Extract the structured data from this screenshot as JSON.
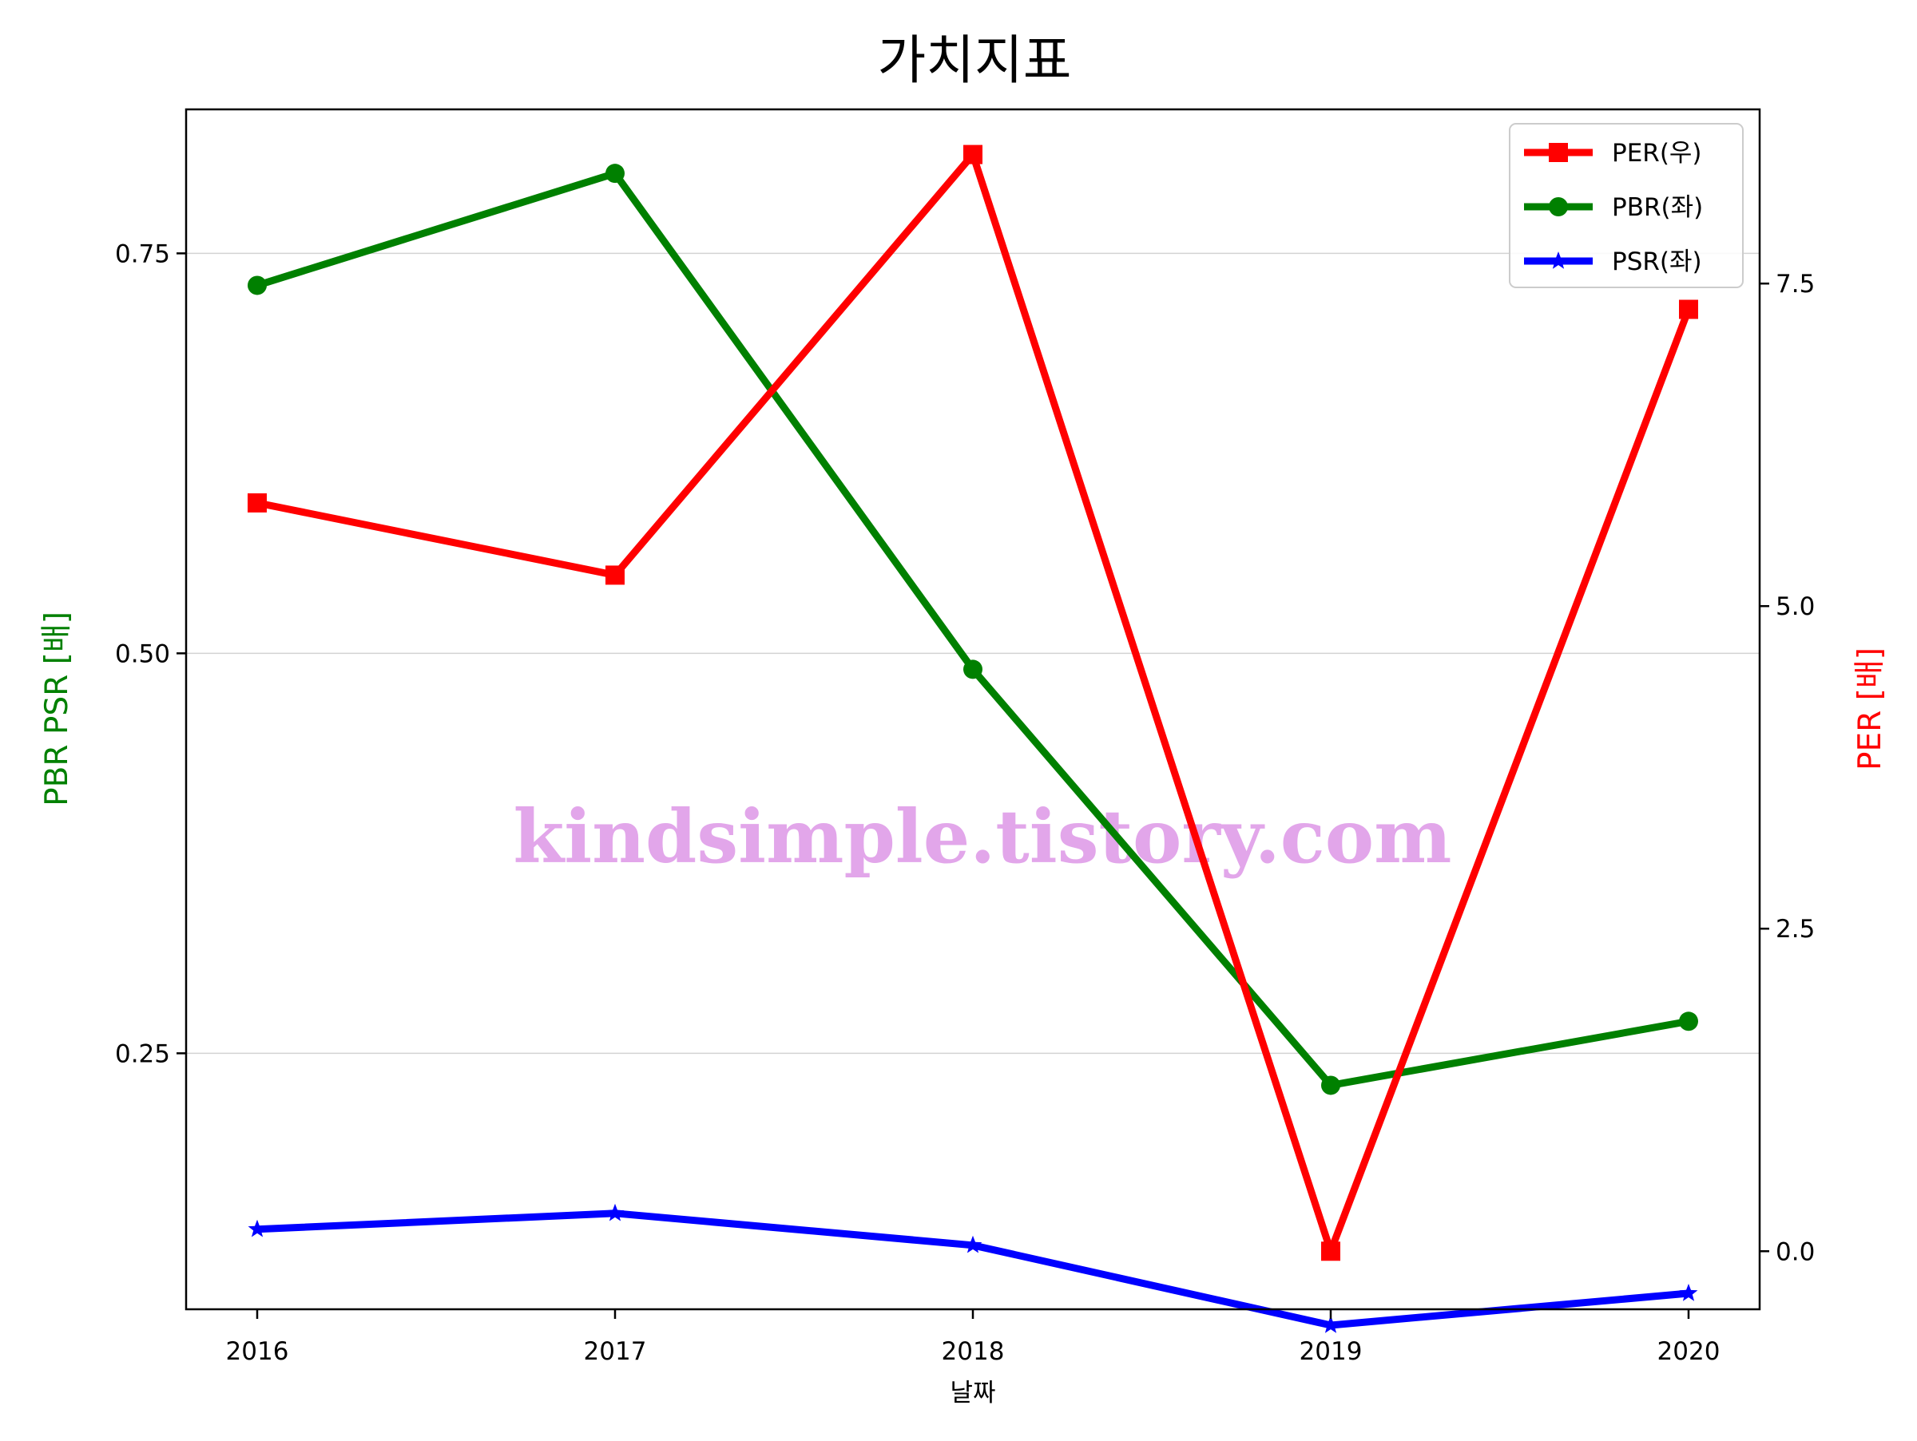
{
  "title": "가치지표",
  "watermark": "kindsimple.tistory.com",
  "colors": {
    "per": "#ff0000",
    "pbr": "#008000",
    "psr": "#0000ff",
    "watermark": "#e2a6ea",
    "grid": "#d3d3d3"
  },
  "chart_data": {
    "type": "line",
    "title": "가치지표",
    "xlabel": "날짜",
    "ylabel_left": "PBR PSR [배]",
    "ylabel_right": "PER [배]",
    "categories": [
      "2016",
      "2017",
      "2018",
      "2019",
      "2020"
    ],
    "left_axis": {
      "ylim": [
        0.09,
        0.84
      ],
      "ticks": [
        0.25,
        0.5,
        0.75
      ],
      "tick_labels": [
        "0.25",
        "0.50",
        "0.75"
      ],
      "grid": true
    },
    "right_axis": {
      "ylim": [
        -0.45,
        8.85
      ],
      "ticks": [
        0.0,
        2.5,
        5.0,
        7.5
      ],
      "tick_labels": [
        "0.0",
        "2.5",
        "5.0",
        "7.5"
      ]
    },
    "series": [
      {
        "name": "PER(우)",
        "axis": "right",
        "marker": "square",
        "color": "#ff0000",
        "values": [
          5.8,
          5.24,
          8.5,
          0.0,
          7.3
        ]
      },
      {
        "name": "PBR(좌)",
        "axis": "left",
        "marker": "circle",
        "color": "#008000",
        "values": [
          0.73,
          0.8,
          0.49,
          0.23,
          0.27
        ]
      },
      {
        "name": "PSR(좌)",
        "axis": "left",
        "marker": "star",
        "color": "#0000ff",
        "values": [
          0.14,
          0.15,
          0.13,
          0.08,
          0.1
        ]
      }
    ],
    "legend": {
      "position": "top-right"
    }
  }
}
